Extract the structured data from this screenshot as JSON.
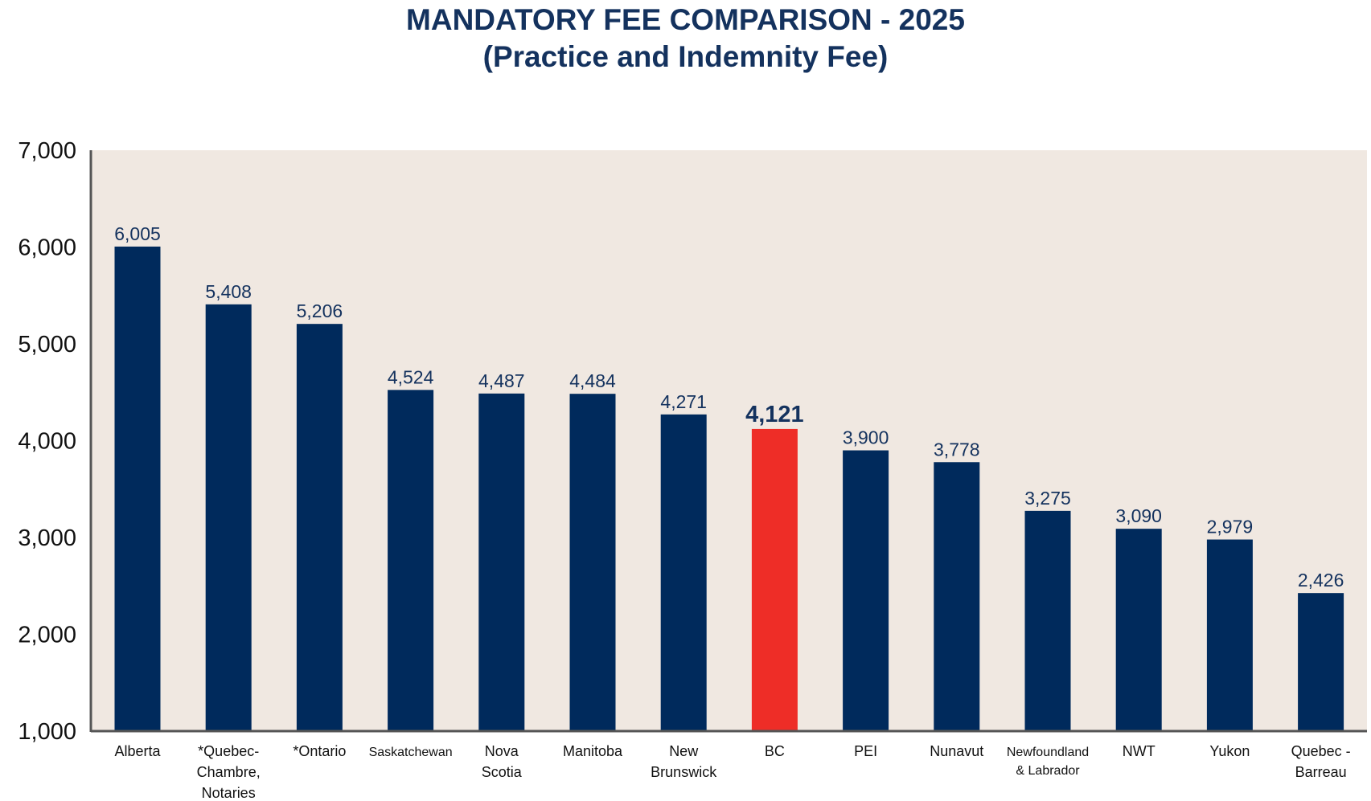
{
  "chart_data": {
    "type": "bar",
    "title": "MANDATORY FEE COMPARISON - 2025",
    "subtitle": "(Practice and Indemnity Fee)",
    "categories": [
      [
        "Alberta"
      ],
      [
        "*Quebec-",
        "Chambre,",
        "Notaries"
      ],
      [
        "*Ontario"
      ],
      [
        "Saskatchewan"
      ],
      [
        "Nova",
        "Scotia"
      ],
      [
        "Manitoba"
      ],
      [
        "New",
        "Brunswick"
      ],
      [
        "BC"
      ],
      [
        "PEI"
      ],
      [
        "Nunavut"
      ],
      [
        "Newfoundland",
        "& Labrador"
      ],
      [
        "NWT"
      ],
      [
        "Yukon"
      ],
      [
        "Quebec -",
        "Barreau"
      ]
    ],
    "values": [
      6005,
      5408,
      5206,
      4524,
      4487,
      4484,
      4271,
      4121,
      3900,
      3778,
      3275,
      3090,
      2979,
      2426
    ],
    "value_labels": [
      "6,005",
      "5,408",
      "5,206",
      "4,524",
      "4,487",
      "4,484",
      "4,271",
      "4,121",
      "3,900",
      "3,778",
      "3,275",
      "3,090",
      "2,979",
      "2,426"
    ],
    "highlight_index": 7,
    "ylim": [
      1000,
      7000
    ],
    "yticks": [
      1000,
      2000,
      3000,
      4000,
      5000,
      6000,
      7000
    ],
    "ytick_labels": [
      "1,000",
      "2,000",
      "3,000",
      "4,000",
      "5,000",
      "6,000",
      "7,000"
    ],
    "xlabel": "",
    "ylabel": "",
    "grid": false,
    "colors": {
      "bar": "#002a5c",
      "highlight": "#ee2d27",
      "plot_background": "#f0e8e1",
      "axis": "#555555",
      "label": "#14325e"
    }
  }
}
